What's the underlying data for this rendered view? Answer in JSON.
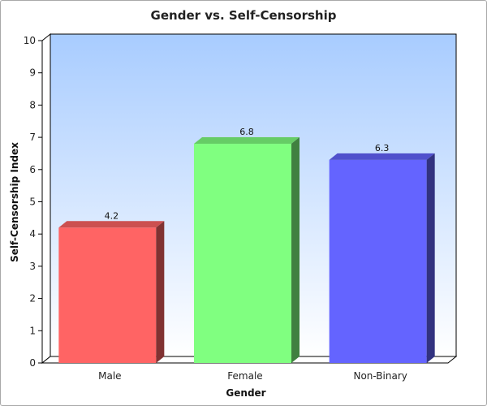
{
  "chart_data": {
    "type": "bar",
    "title": "Gender vs. Self-Censorship",
    "xlabel": "Gender",
    "ylabel": "Self-Censorship Index",
    "categories": [
      "Male",
      "Female",
      "Non-Binary"
    ],
    "values": [
      4.2,
      6.8,
      6.3
    ],
    "data_labels": [
      "4.2",
      "6.8",
      "6.3"
    ],
    "colors": [
      "#ff6464",
      "#80ff80",
      "#6464ff"
    ],
    "ylim": [
      0,
      10
    ],
    "yticks": [
      "0",
      "1",
      "2",
      "3",
      "4",
      "5",
      "6",
      "7",
      "8",
      "9",
      "10"
    ],
    "grid": false,
    "style": "3d",
    "background_gradient": [
      "#a8ccff",
      "#ffffff"
    ]
  }
}
